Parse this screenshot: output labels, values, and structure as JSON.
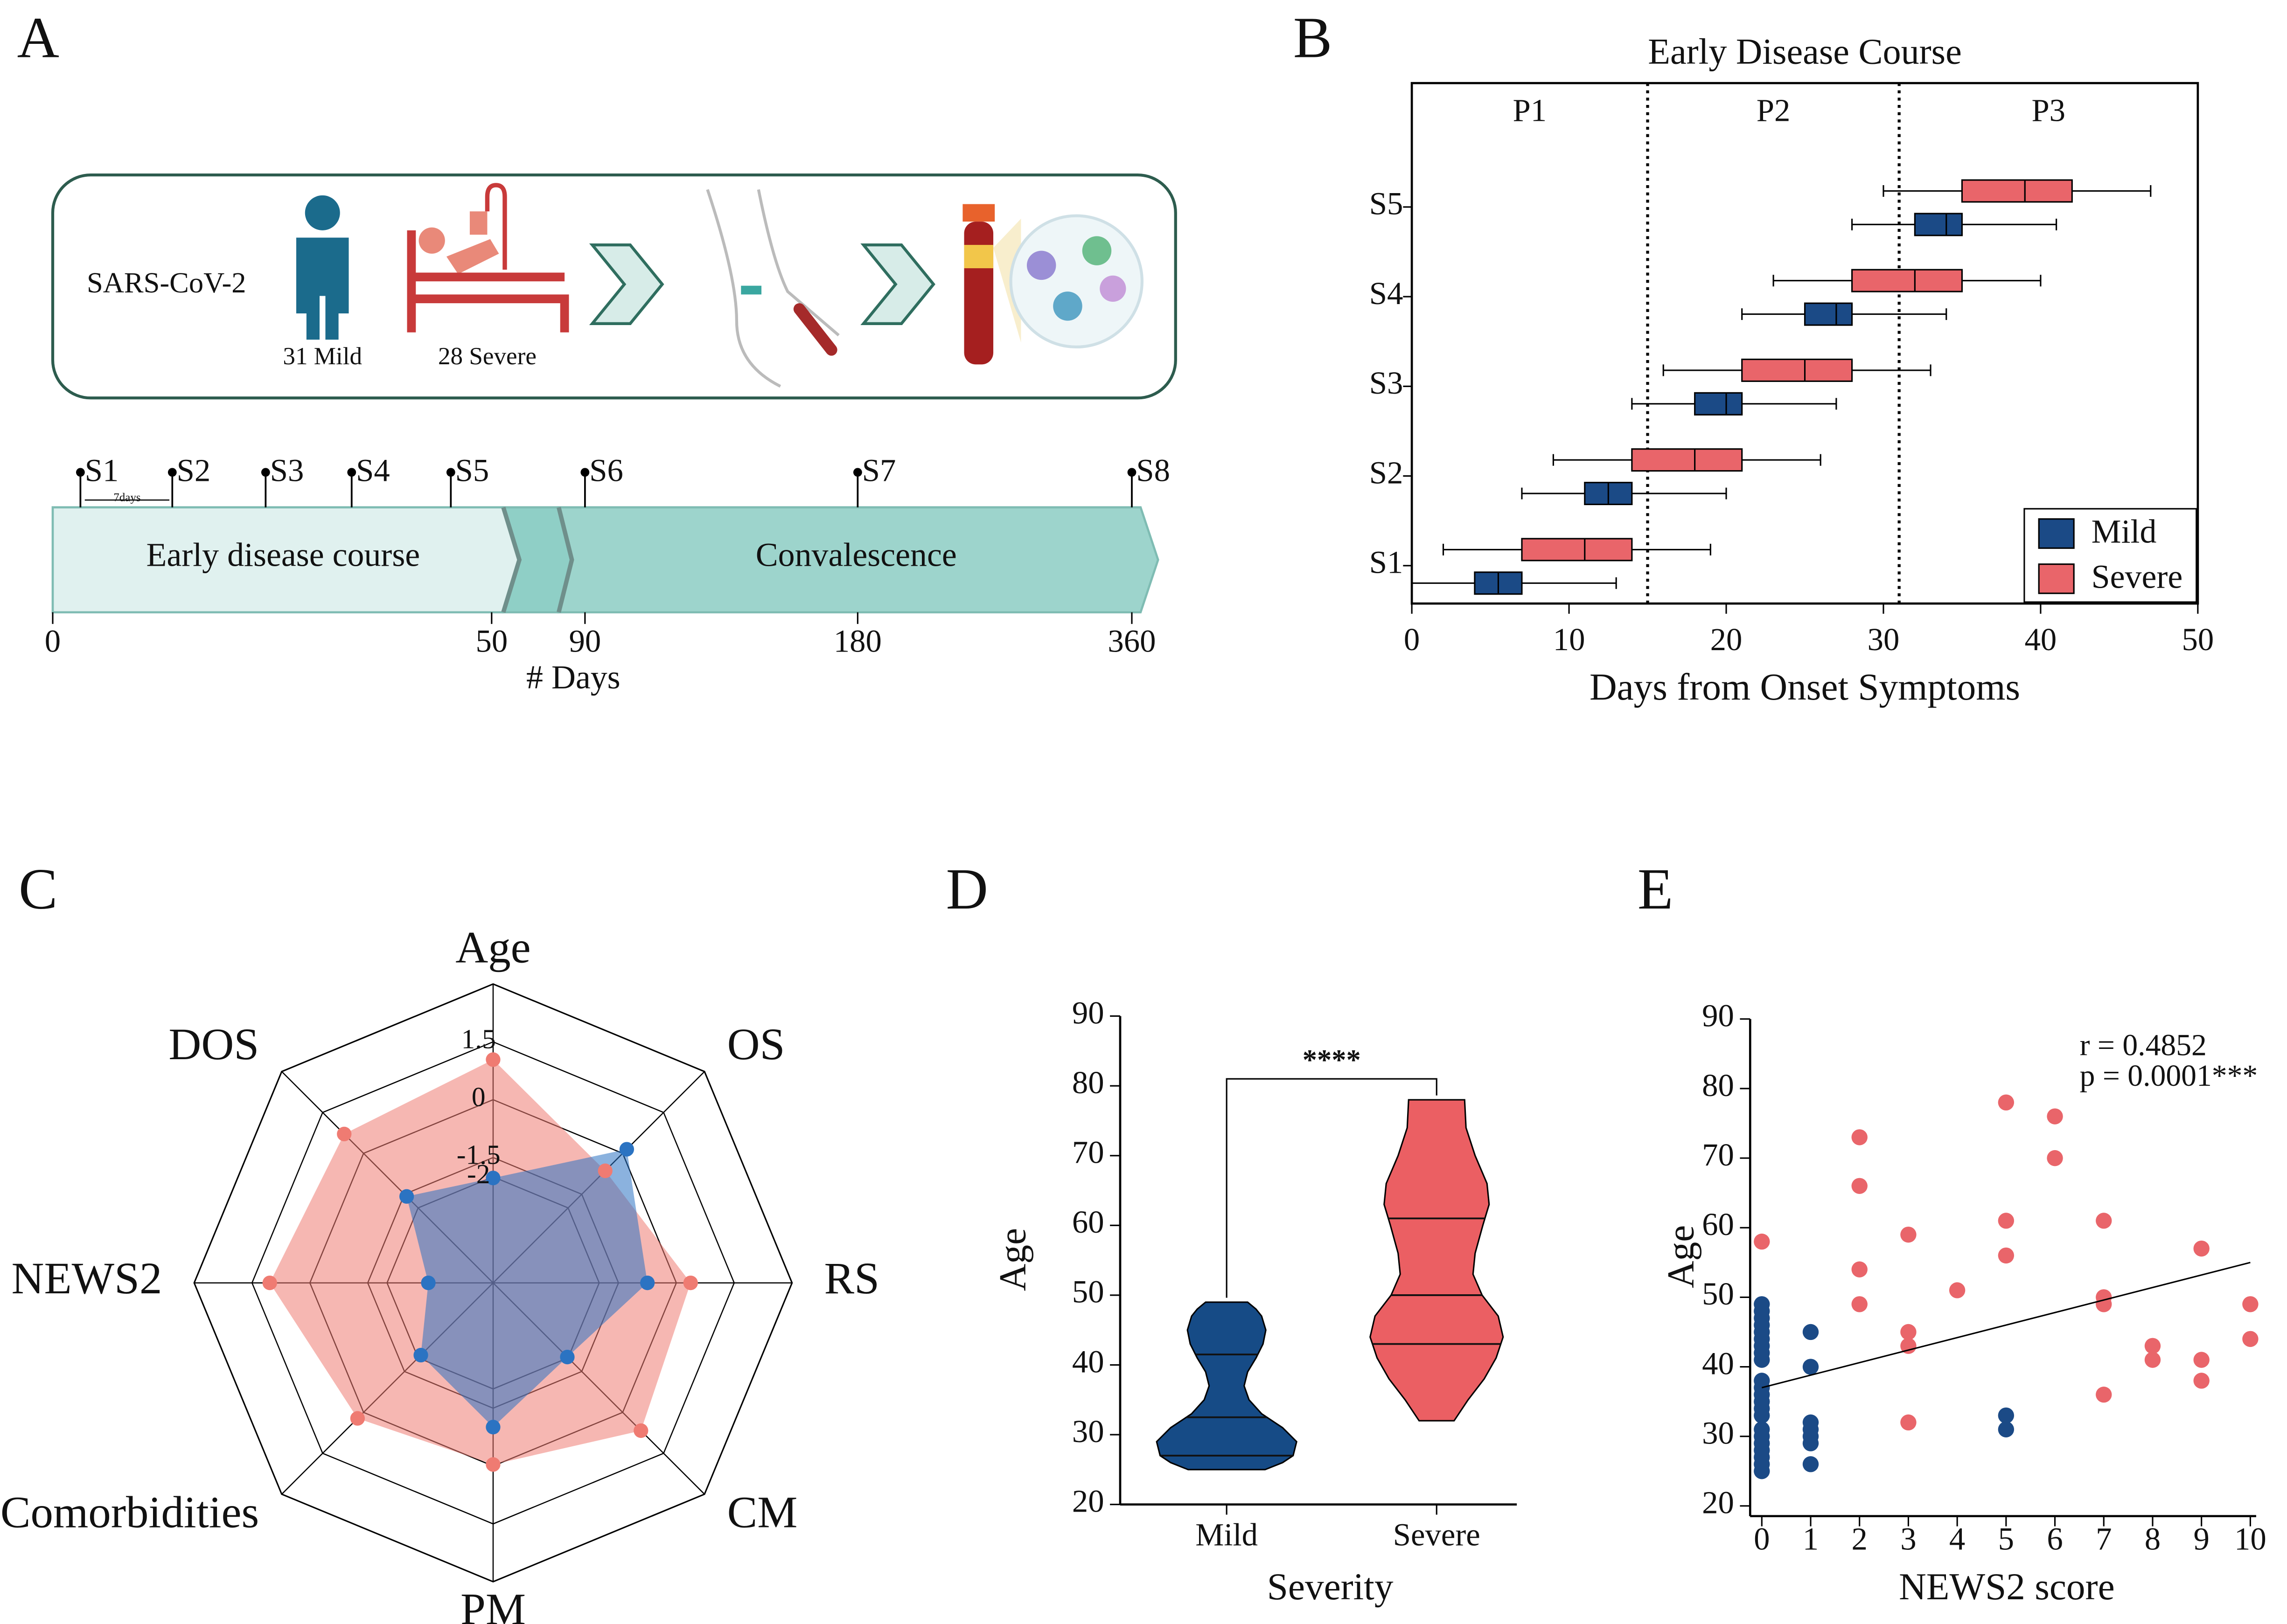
{
  "panel_labels": [
    "A",
    "B",
    "C",
    "D",
    "E"
  ],
  "diagram": {
    "cohort_label": "SARS-CoV-2",
    "mild_label": "31 Mild",
    "severe_label": "28 Severe",
    "samples": [
      "S1",
      "S2",
      "S3",
      "S4",
      "S5",
      "S6",
      "S7",
      "S8"
    ],
    "interval_label": "7days",
    "phases": [
      "Early disease course",
      "Convalescence"
    ],
    "day_ticks": [
      0,
      50,
      90,
      180,
      360
    ],
    "axis_label": "# Days"
  },
  "chart_data": [
    {
      "type": "boxplot",
      "title": "Early Disease Course",
      "xlabel": "Days from Onset Symptoms",
      "categories": [
        "S1",
        "S2",
        "S3",
        "S4",
        "S5"
      ],
      "series": [
        {
          "name": "Mild",
          "color": "#1b4a86",
          "boxes": [
            [
              0,
              4,
              5.5,
              7,
              13
            ],
            [
              7,
              11,
              12.5,
              14,
              20
            ],
            [
              14,
              18,
              20,
              21,
              27
            ],
            [
              21,
              25,
              27,
              28,
              34
            ],
            [
              28,
              32,
              34,
              35,
              41
            ]
          ]
        },
        {
          "name": "Severe",
          "color": "#e9656a",
          "boxes": [
            [
              2,
              7,
              11,
              14,
              19
            ],
            [
              9,
              14,
              18,
              21,
              26
            ],
            [
              16,
              21,
              25,
              28,
              33
            ],
            [
              23,
              28,
              32,
              35,
              40
            ],
            [
              30,
              35,
              39,
              42,
              47
            ]
          ]
        }
      ],
      "xlim": [
        0,
        50
      ],
      "xticks": [
        0,
        10,
        20,
        30,
        40,
        50
      ],
      "vlines": [
        15,
        31
      ],
      "regions": [
        "P1",
        "P2",
        "P3"
      ],
      "legend": "lower right"
    },
    {
      "type": "radar",
      "axes": [
        "Age",
        "OS",
        "RS",
        "CM",
        "PM",
        "Comorbidities",
        "NEWS2",
        "DOS"
      ],
      "rlim": [
        -4.75,
        3
      ],
      "rticks": [
        1.5,
        0,
        -1.5,
        -2
      ],
      "series": [
        {
          "name": "Mild",
          "color": "#2b73c2",
          "values": [
            -2.03,
            0.15,
            -0.75,
            -2.03,
            -1.01,
            -2.1,
            -3.07,
            -1.58
          ]
        },
        {
          "name": "Severe",
          "color": "#ef7b72",
          "values": [
            1.04,
            -0.64,
            0.37,
            0.67,
            -0.04,
            0.22,
            1.04,
            0.71
          ]
        }
      ]
    },
    {
      "type": "violin",
      "xlabel": "Severity",
      "ylabel": "Age",
      "categories": [
        "Mild",
        "Severe"
      ],
      "groups": [
        {
          "color": "#164b86",
          "profile": {
            "y": [
              25,
              26,
              27,
              29,
              31,
              33,
              35,
              37,
              39,
              41,
              43,
              45,
              47,
              48,
              49
            ],
            "width": [
              0.55,
              0.8,
              0.95,
              1.0,
              0.8,
              0.5,
              0.32,
              0.25,
              0.3,
              0.42,
              0.52,
              0.56,
              0.5,
              0.42,
              0.3
            ]
          },
          "quartiles": [
            27,
            32.5,
            41.5
          ]
        },
        {
          "color": "#eb5f63",
          "profile": {
            "y": [
              32,
              35,
              38,
              41,
              44,
              47,
              50,
              53,
              56,
              60,
              63,
              66,
              70,
              74,
              78
            ],
            "width": [
              0.25,
              0.45,
              0.68,
              0.85,
              0.95,
              0.88,
              0.65,
              0.52,
              0.55,
              0.66,
              0.75,
              0.72,
              0.55,
              0.42,
              0.4
            ]
          },
          "quartiles": [
            43,
            50,
            61
          ]
        }
      ],
      "ylim": [
        20,
        90
      ],
      "yticks": [
        20,
        30,
        40,
        50,
        60,
        70,
        80,
        90
      ],
      "significance": {
        "label": "****",
        "y": 81
      }
    },
    {
      "type": "scatter",
      "xlabel": "NEWS2 score",
      "ylabel": "Age",
      "xlim": [
        0,
        10
      ],
      "xticks": [
        0,
        1,
        2,
        3,
        4,
        5,
        6,
        7,
        8,
        9,
        10
      ],
      "ylim": [
        20,
        90
      ],
      "yticks": [
        20,
        30,
        40,
        50,
        60,
        70,
        80,
        90
      ],
      "series": [
        {
          "color": "#1b4a86",
          "x": [
            0,
            0,
            0,
            0,
            0,
            0,
            0,
            0,
            0,
            0,
            0,
            0,
            0,
            0,
            0,
            0,
            0,
            0,
            0,
            0,
            0,
            0,
            1,
            1,
            1,
            1,
            1,
            1,
            1,
            5,
            5
          ],
          "y": [
            49,
            48,
            47,
            46,
            45,
            44,
            43,
            42,
            41,
            38,
            37,
            36,
            35,
            34,
            33,
            31,
            30,
            29,
            28,
            27,
            26,
            25,
            45,
            40,
            32,
            31,
            30,
            29,
            26,
            33,
            31
          ]
        },
        {
          "color": "#e9656a",
          "x": [
            0,
            2,
            2,
            2,
            2,
            3,
            3,
            3,
            3,
            4,
            5,
            5,
            5,
            6,
            6,
            7,
            7,
            7,
            7,
            8,
            8,
            9,
            9,
            9,
            10,
            10
          ],
          "y": [
            58,
            73,
            66,
            54,
            49,
            59,
            45,
            43,
            32,
            51,
            78,
            61,
            56,
            76,
            70,
            61,
            50,
            49,
            36,
            43,
            41,
            57,
            41,
            38,
            49,
            44
          ]
        }
      ],
      "fit": {
        "x": [
          0,
          10
        ],
        "y": [
          37,
          55
        ]
      },
      "annotations": [
        "r = 0.4852",
        "p = 0.0001***"
      ]
    }
  ]
}
